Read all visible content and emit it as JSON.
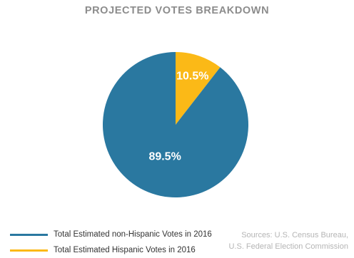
{
  "chart_data": {
    "type": "pie",
    "title": "PROJECTED VOTES BREAKDOWN",
    "slices": [
      {
        "label": "Total Estimated Hispanic Votes in 2016",
        "value": 10.5,
        "display": "10.5%",
        "color": "#fbb917"
      },
      {
        "label": "Total Estimated non-Hispanic Votes in 2016",
        "value": 89.5,
        "display": "89.5%",
        "color": "#2a78a0"
      }
    ],
    "legend": [
      {
        "label": "Total Estimated non-Hispanic Votes in 2016",
        "color": "#2a78a0"
      },
      {
        "label": "Total Estimated Hispanic Votes in 2016",
        "color": "#fbb917"
      }
    ],
    "legend_position": "bottom-left",
    "source": {
      "line1": "Sources: U.S. Census Bureau,",
      "line2": "U.S. Federal Election Commission"
    }
  }
}
